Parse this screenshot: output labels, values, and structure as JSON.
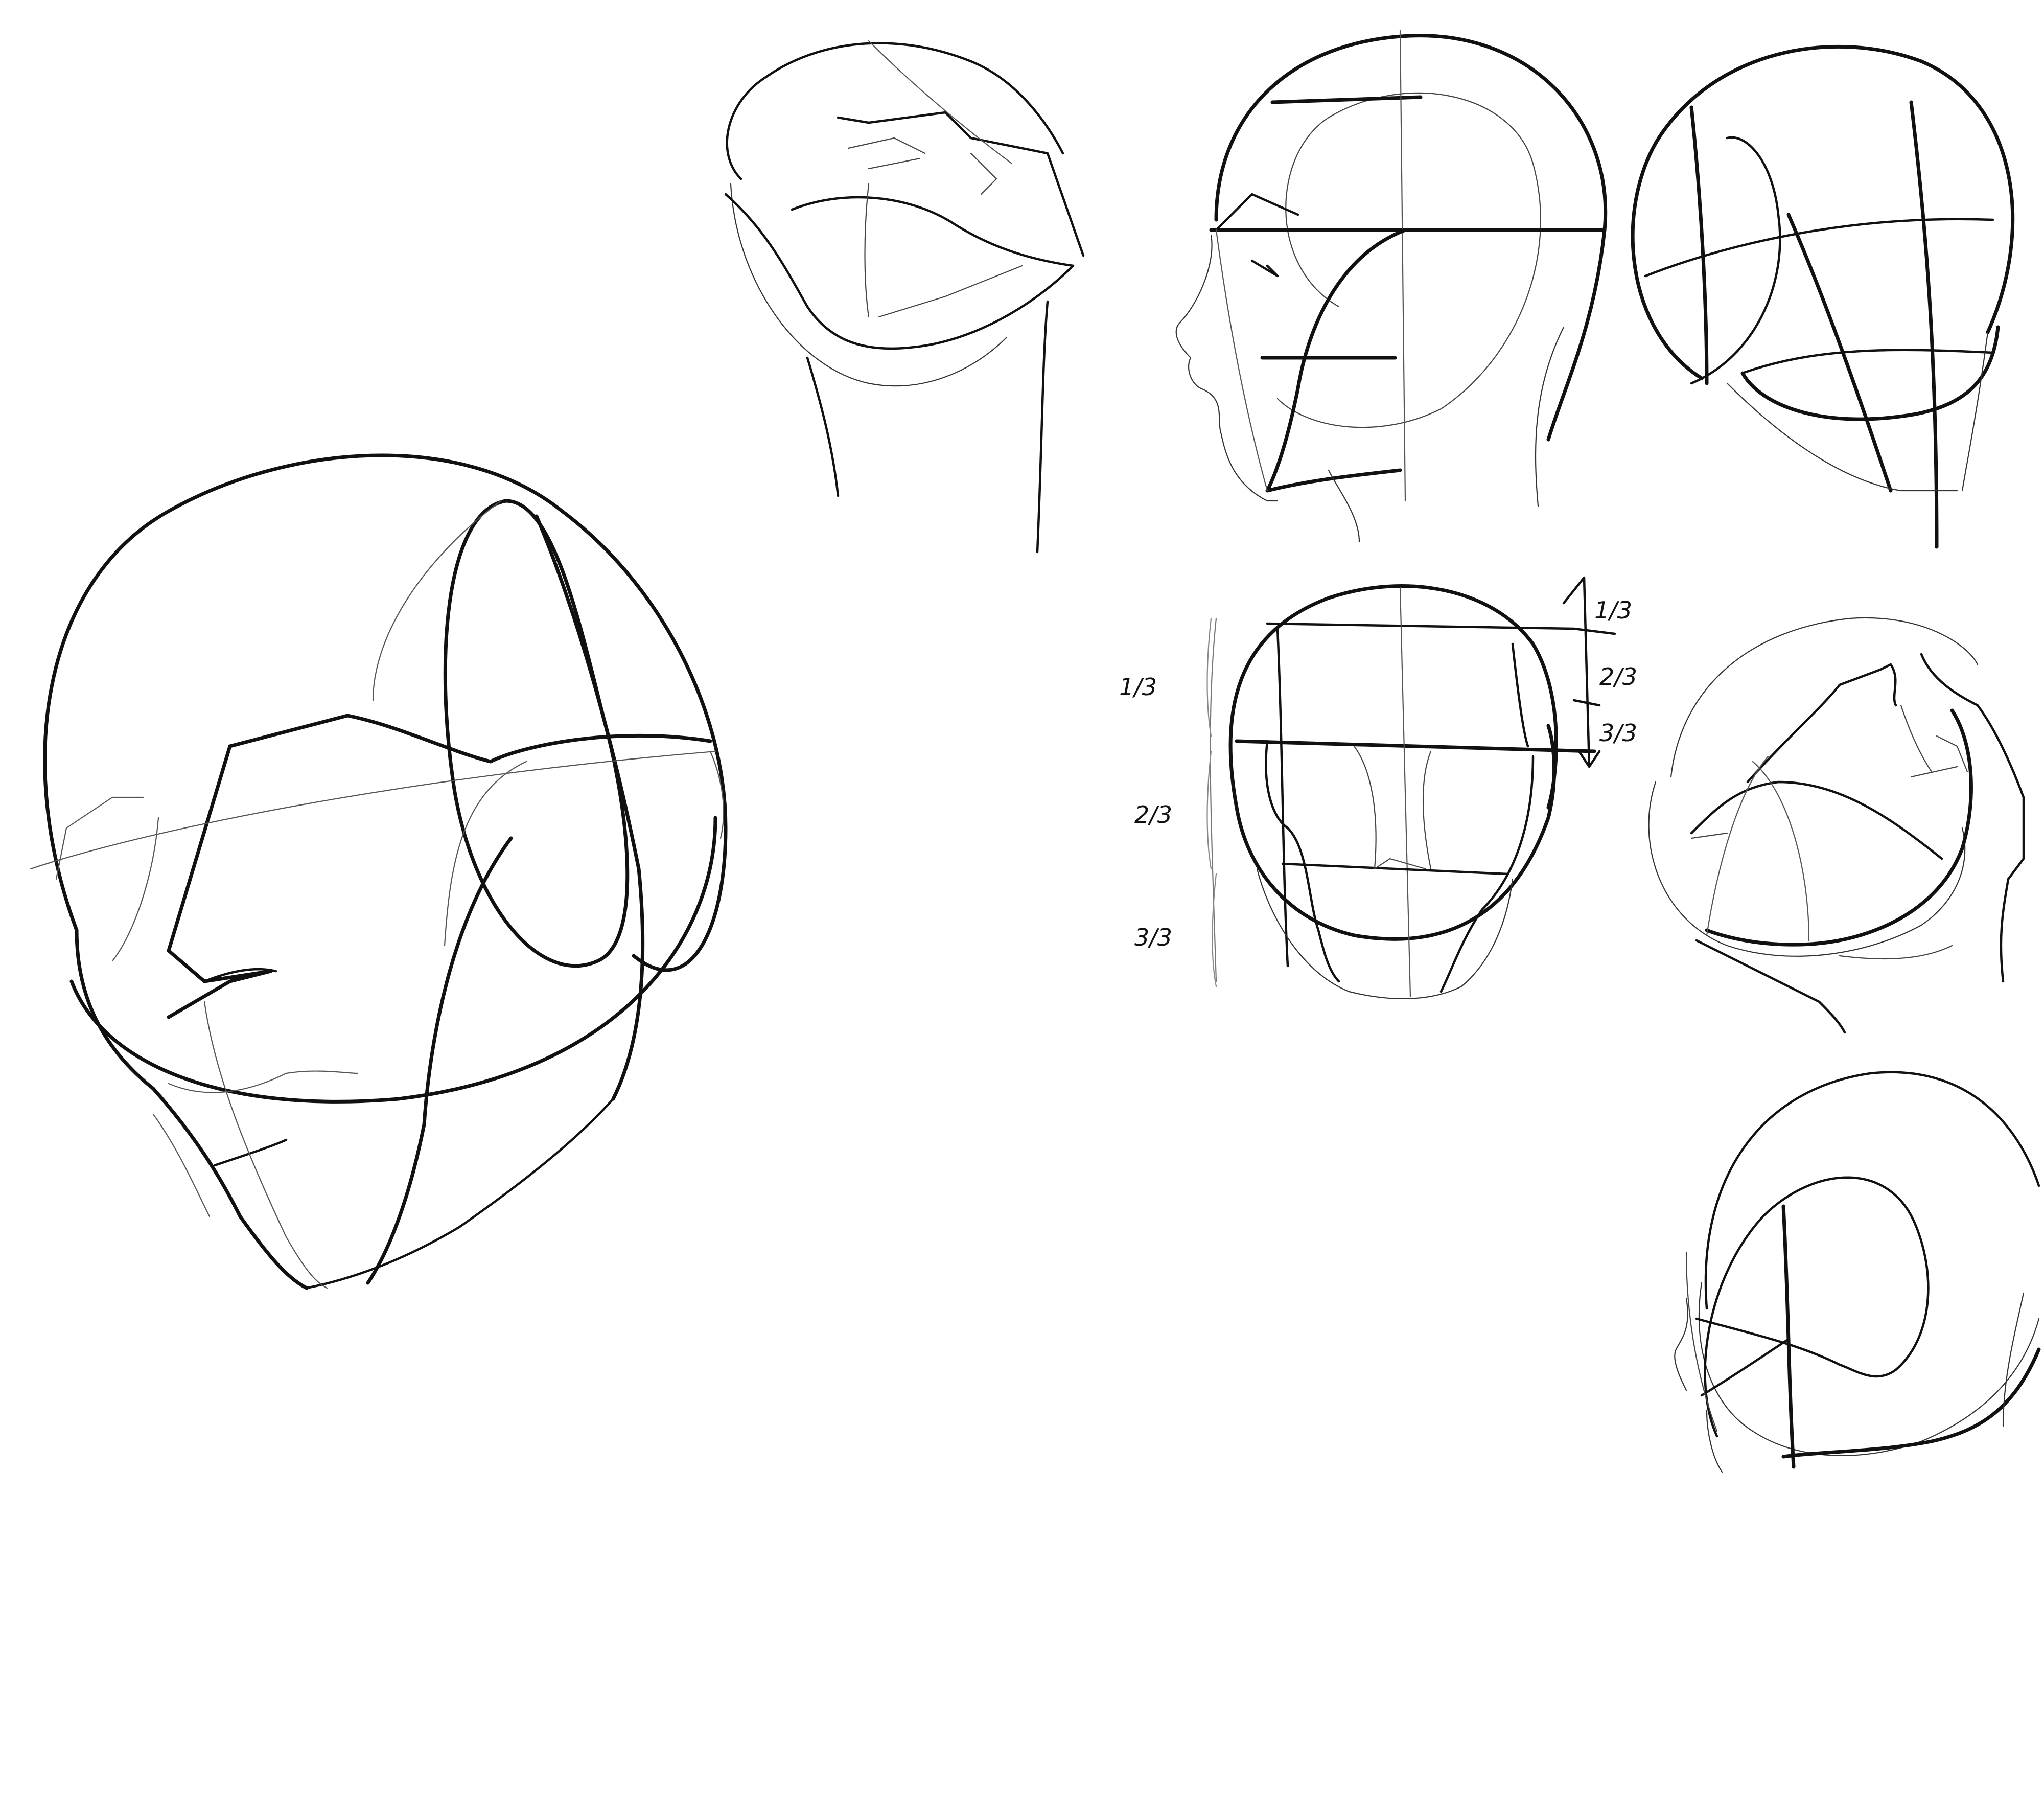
{
  "colors": {
    "background": "#ffffff",
    "ink": "#111111",
    "guide": "#6f6f6f"
  },
  "annotations": {
    "left": [
      "1/3",
      "2/3",
      "3/3"
    ],
    "right": [
      "1/3",
      "2/3",
      "3/3"
    ]
  }
}
